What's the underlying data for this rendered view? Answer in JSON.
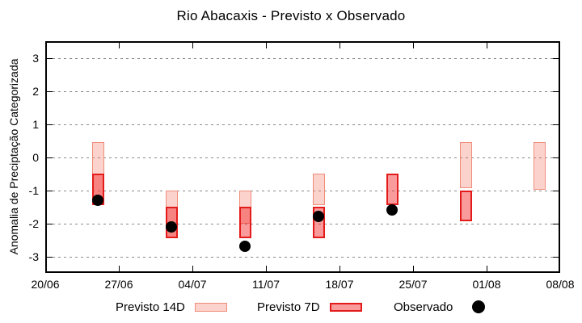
{
  "figure": {
    "background": "#ffffff"
  },
  "colors": {
    "previsto14_fill": "rgba(244,106,86,0.30)",
    "previsto14_border": "#ef8d7b",
    "previsto7_fill": "rgba(242,47,47,0.48)",
    "previsto7_border": "#e31b1b",
    "observado": "#000000",
    "grid": "#8a8a8a",
    "axis": "#000000"
  },
  "chart_data": {
    "type": "range-bar+scatter",
    "title": "Rio Abacaxis - Previsto x Observado",
    "xlabel": "",
    "ylabel": "Anomalia de Preciptação Categorizada",
    "ylim": [
      -3.5,
      3.5
    ],
    "y_ticks": [
      -3,
      -2,
      -1,
      0,
      1,
      2,
      3
    ],
    "xlim_days": [
      0,
      49
    ],
    "x_tick_days": [
      0,
      7,
      14,
      21,
      28,
      35,
      42,
      49
    ],
    "x_tick_labels": [
      "20/06",
      "27/06",
      "04/07",
      "11/07",
      "18/07",
      "25/07",
      "01/08",
      "08/08"
    ],
    "grid": "horizontal-dashed",
    "legend_position": "bottom-outside",
    "points": [
      {
        "date": "25/06",
        "day": 5,
        "previsto14": {
          "hi": 0.45,
          "lo": -1.45
        },
        "previsto7": {
          "hi": -0.5,
          "lo": -1.45
        },
        "observado": -1.3
      },
      {
        "date": "02/07",
        "day": 12,
        "previsto14": {
          "hi": -1.0,
          "lo": -2.45
        },
        "previsto7": {
          "hi": -1.5,
          "lo": -2.45
        },
        "observado": -2.1
      },
      {
        "date": "09/07",
        "day": 19,
        "previsto14": {
          "hi": -1.0,
          "lo": -2.0
        },
        "previsto7": {
          "hi": -1.5,
          "lo": -2.45
        },
        "observado": -2.7
      },
      {
        "date": "16/07",
        "day": 26,
        "previsto14": {
          "hi": -0.5,
          "lo": -1.45
        },
        "previsto7": {
          "hi": -1.5,
          "lo": -2.45
        },
        "observado": -1.8
      },
      {
        "date": "23/07",
        "day": 33,
        "previsto14": null,
        "previsto7": {
          "hi": -0.5,
          "lo": -1.45
        },
        "observado": -1.6
      },
      {
        "date": "30/07",
        "day": 40,
        "previsto14": {
          "hi": 0.45,
          "lo": -0.95
        },
        "previsto7": {
          "hi": -1.0,
          "lo": -1.95
        },
        "observado": null
      },
      {
        "date": "06/08",
        "day": 47,
        "previsto14": {
          "hi": 0.45,
          "lo": -1.0
        },
        "previsto7": null,
        "observado": null
      }
    ],
    "legend": [
      {
        "label": "Previsto 14D",
        "type": "box-light"
      },
      {
        "label": "Previsto 7D",
        "type": "box-dark"
      },
      {
        "label": "Observado",
        "type": "dot"
      }
    ]
  }
}
